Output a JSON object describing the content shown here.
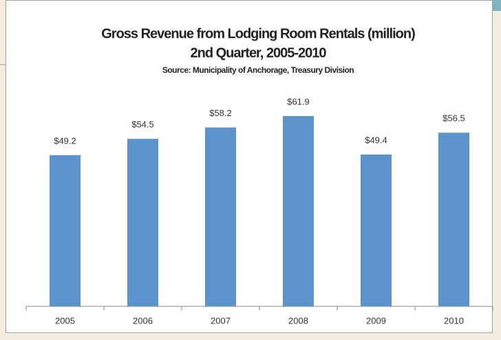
{
  "chart_data": {
    "type": "bar",
    "title": "Gross Revenue from Lodging Room Rentals (million)",
    "subtitle": "2nd Quarter, 2005-2010",
    "source": "Source:  Municipality of Anchorage, Treasury Division",
    "categories": [
      "2005",
      "2006",
      "2007",
      "2008",
      "2009",
      "2010"
    ],
    "values": [
      49.2,
      54.5,
      58.2,
      61.9,
      49.4,
      56.5
    ],
    "value_labels": [
      "$49.2",
      "$54.5",
      "$58.2",
      "$61.9",
      "$49.4",
      "$56.5"
    ],
    "color": "#5b93cc"
  }
}
